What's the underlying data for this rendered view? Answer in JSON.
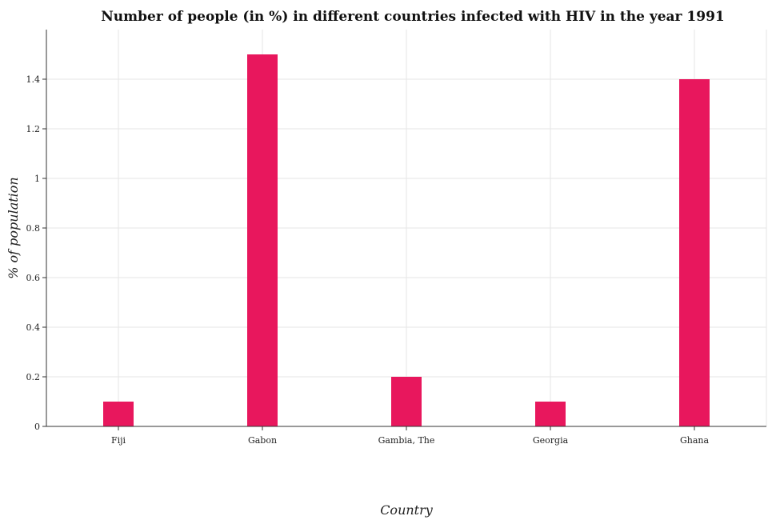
{
  "chart_data": {
    "type": "bar",
    "title": "Number of people (in %) in different countries infected with HIV in the year 1991",
    "xlabel": "Country",
    "ylabel": "% of population",
    "categories": [
      "Fiji",
      "Gabon",
      "Gambia, The",
      "Georgia",
      "Ghana"
    ],
    "values": [
      0.1,
      1.5,
      0.2,
      0.1,
      1.4
    ],
    "ylim": [
      0,
      1.6
    ],
    "yticks": [
      0,
      0.2,
      0.4,
      0.6,
      0.8,
      1,
      1.2,
      1.4
    ],
    "ytick_labels": [
      "0",
      "0.2",
      "0.4",
      "0.6",
      "0.8",
      "1",
      "1.2",
      "1.4"
    ],
    "grid": true,
    "bar_color": "#e8175d"
  }
}
